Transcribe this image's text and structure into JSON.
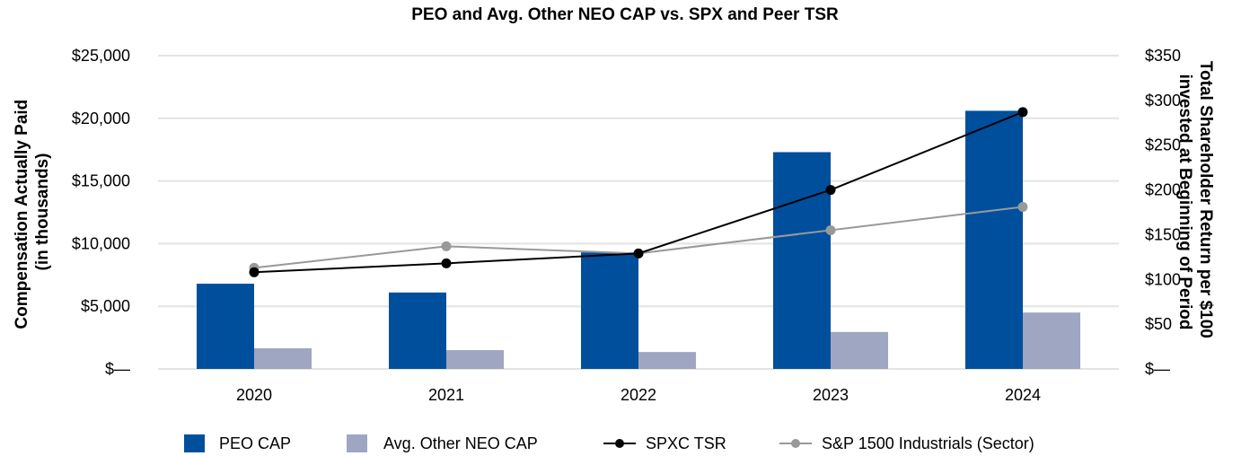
{
  "chart_data": {
    "type": "bar",
    "title": "PEO and Avg. Other NEO CAP vs. SPX and Peer TSR",
    "categories": [
      "2020",
      "2021",
      "2022",
      "2023",
      "2024"
    ],
    "ylabel": [
      "Compensation Actually Paid",
      "(in thousands)"
    ],
    "y2label": [
      "Total Shareholder Return per $100",
      "invested at Beginning of Period"
    ],
    "ylim": [
      0,
      25000
    ],
    "y2lim": [
      0,
      350
    ],
    "yticks": [
      "$—",
      "$5,000",
      "$10,000",
      "$15,000",
      "$20,000",
      "$25,000"
    ],
    "y2ticks": [
      "$—",
      "$50",
      "$100",
      "$150",
      "$200",
      "$250",
      "$300",
      "$350"
    ],
    "series": [
      {
        "name": "PEO CAP",
        "kind": "bar",
        "axis": "left",
        "color": "#004f9d",
        "values": [
          6800,
          6100,
          9300,
          17300,
          20600
        ]
      },
      {
        "name": "Avg. Other NEO CAP",
        "kind": "bar",
        "axis": "left",
        "color": "#9ea6c2",
        "values": [
          1650,
          1500,
          1350,
          2950,
          4500
        ]
      },
      {
        "name": "SPXC TSR",
        "kind": "line",
        "axis": "right",
        "color": "#000000",
        "values": [
          108,
          118,
          129,
          200,
          287
        ]
      },
      {
        "name": "S&P 1500 Industrials (Sector)",
        "kind": "line",
        "axis": "right",
        "color": "#999999",
        "values": [
          113,
          137,
          129,
          155,
          181
        ]
      }
    ],
    "legend_position": "bottom"
  }
}
